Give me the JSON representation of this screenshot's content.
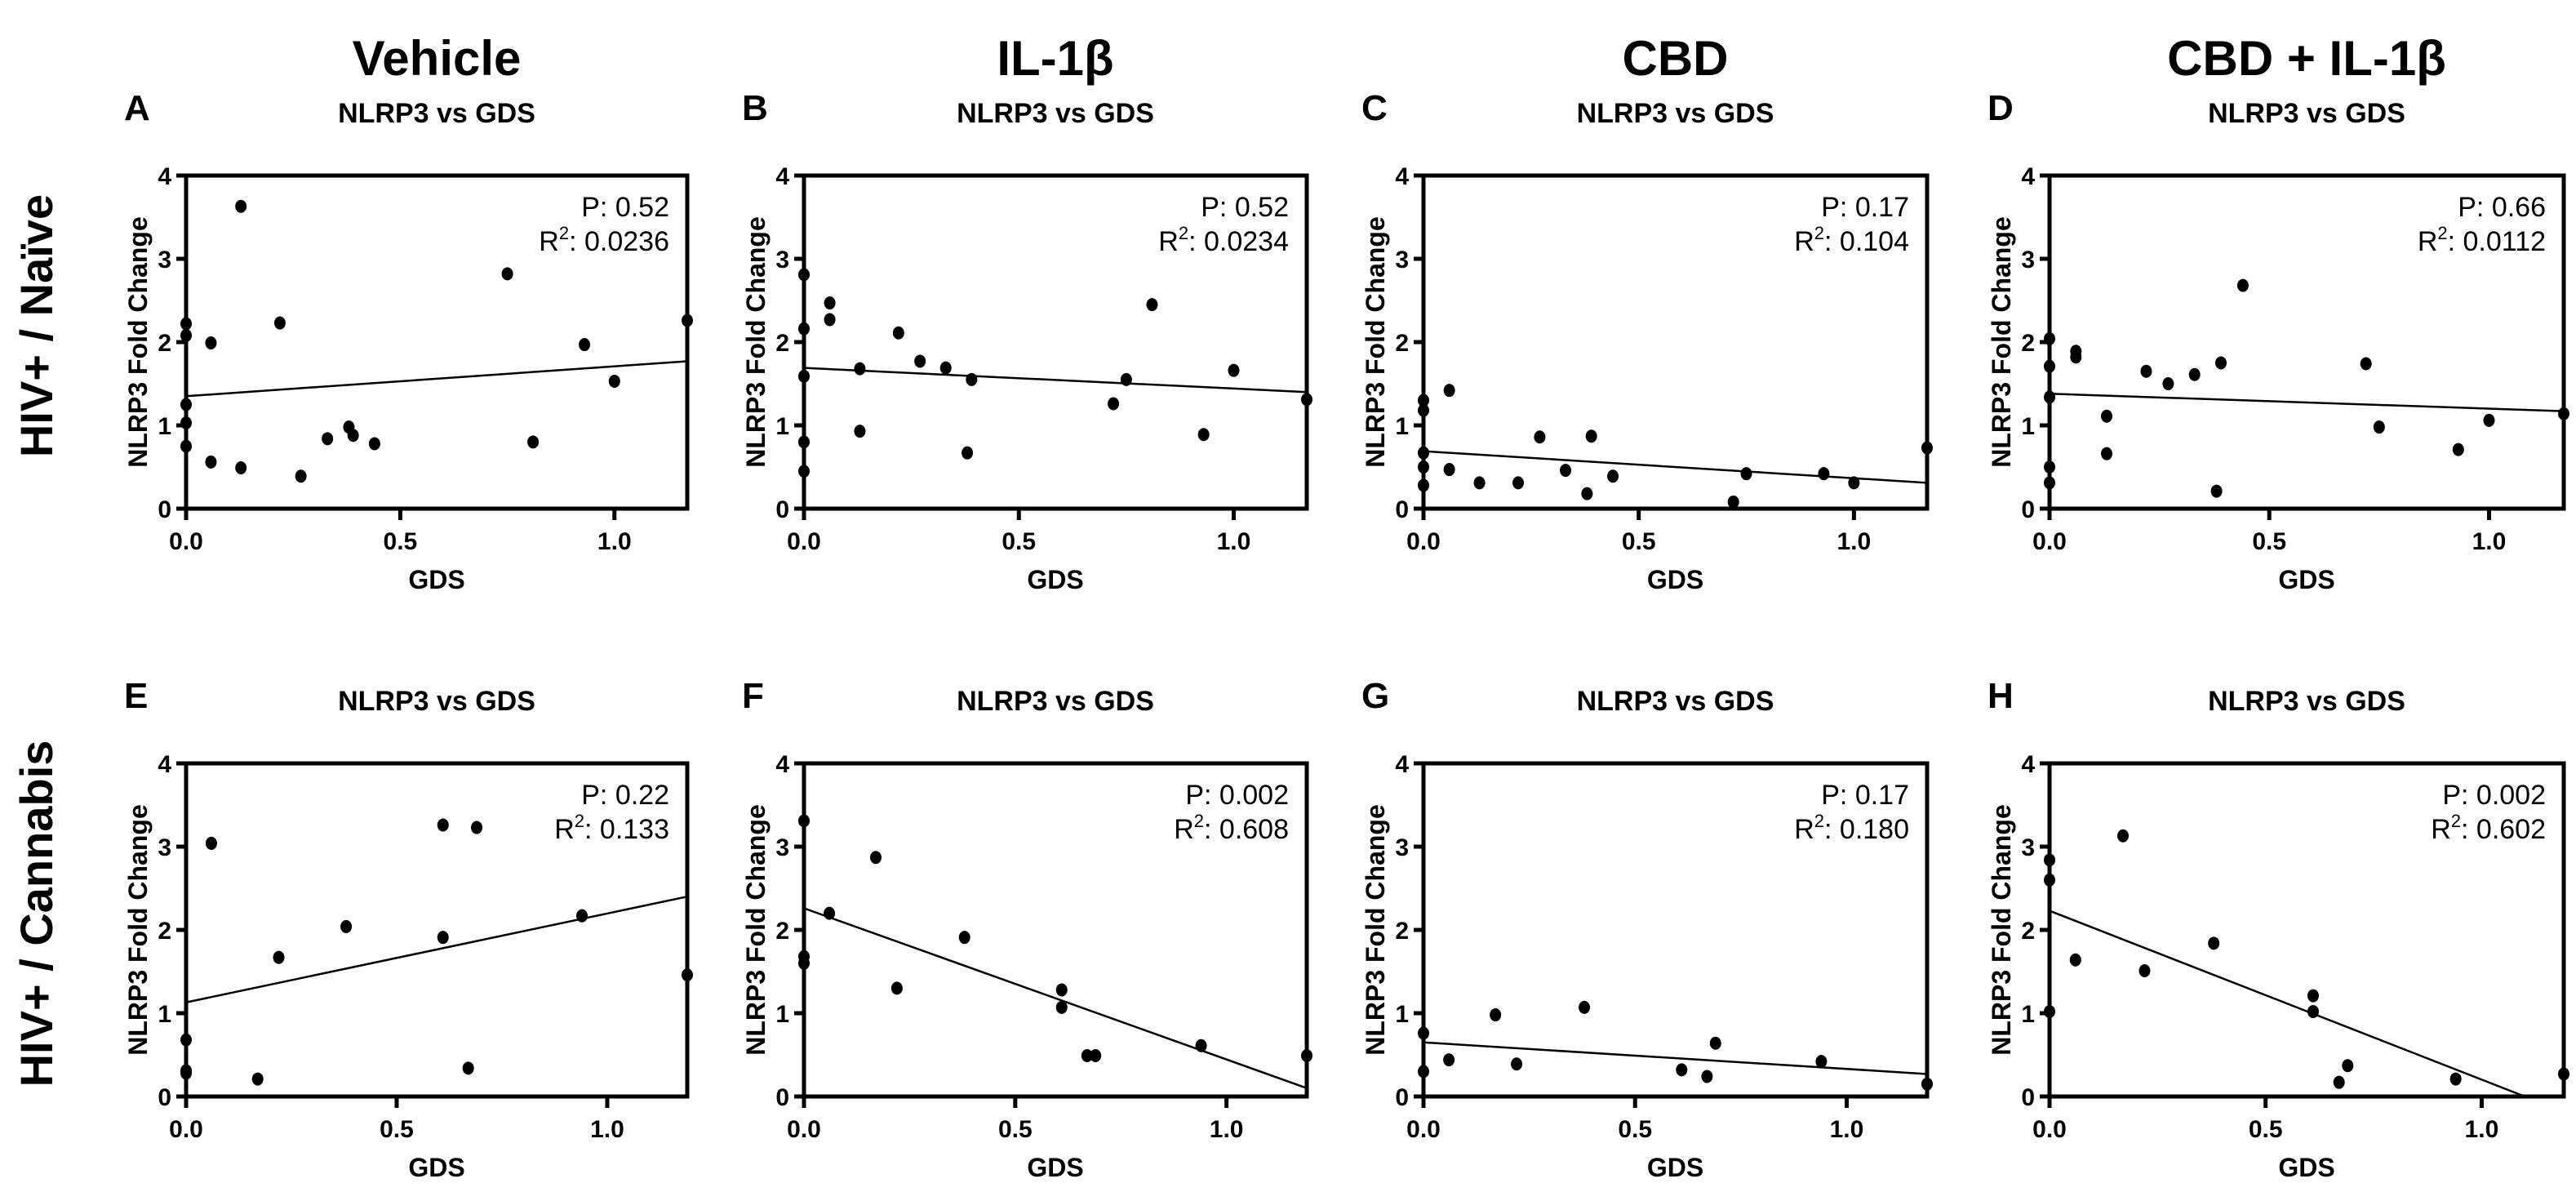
{
  "column_titles": [
    "Vehicle",
    "IL-1β",
    "CBD",
    "CBD + IL-1β"
  ],
  "row_titles": [
    "HIV+ / Naïve",
    "HIV+ / Cannabis"
  ],
  "chart_data": [
    {
      "type": "scatter",
      "letter": "A",
      "title": "NLRP3 vs GDS",
      "xlabel": "GDS",
      "ylabel": "NLRP3 Fold Change",
      "xlim": [
        0,
        1.17
      ],
      "ylim": [
        0,
        4
      ],
      "xticks": [
        "0.0",
        "0.5",
        "1.0"
      ],
      "yticks": [
        "0",
        "1",
        "2",
        "3",
        "4"
      ],
      "p_text": "P: 0.52",
      "r2_label": "R",
      "r2_sup": "2",
      "r2_value": ": 0.0236",
      "x": [
        0.128,
        0.75,
        0,
        0,
        0.058,
        0.219,
        1.17,
        0.93,
        1.0,
        0,
        0,
        0,
        0.058,
        0.128,
        0.268,
        0.33,
        0.38,
        0.39,
        0.44,
        0.81
      ],
      "y": [
        3.63,
        2.82,
        2.22,
        2.08,
        1.99,
        2.23,
        2.26,
        1.97,
        1.53,
        1.25,
        1.03,
        0.75,
        0.56,
        0.49,
        0.39,
        0.84,
        0.98,
        0.88,
        0.78,
        0.8
      ],
      "fit_line": {
        "x": [
          0,
          1.17
        ],
        "y": [
          1.35,
          1.77
        ]
      }
    },
    {
      "type": "scatter",
      "letter": "B",
      "title": "NLRP3 vs GDS",
      "xlabel": "GDS",
      "ylabel": "NLRP3 Fold Change",
      "xlim": [
        0,
        1.17
      ],
      "ylim": [
        0,
        4
      ],
      "xticks": [
        "0.0",
        "0.5",
        "1.0"
      ],
      "yticks": [
        "0",
        "1",
        "2",
        "3",
        "4"
      ],
      "p_text": "P: 0.52",
      "r2_label": "R",
      "r2_sup": "2",
      "r2_value": ": 0.0234",
      "x": [
        0,
        0,
        0,
        0,
        0,
        0.06,
        0.06,
        0.13,
        0.13,
        0.22,
        0.27,
        0.33,
        0.39,
        0.38,
        0.72,
        0.75,
        0.81,
        0.93,
        1.0,
        1.17
      ],
      "y": [
        2.81,
        2.16,
        1.59,
        0.8,
        0.45,
        2.47,
        2.27,
        1.68,
        0.93,
        2.11,
        1.77,
        1.69,
        1.55,
        0.67,
        1.26,
        1.55,
        2.45,
        0.89,
        1.66,
        1.31
      ],
      "fit_line": {
        "x": [
          0,
          1.17
        ],
        "y": [
          1.69,
          1.4
        ]
      }
    },
    {
      "type": "scatter",
      "letter": "C",
      "title": "NLRP3 vs GDS",
      "xlabel": "GDS",
      "ylabel": "NLRP3 Fold Change",
      "xlim": [
        0,
        1.17
      ],
      "ylim": [
        0,
        4
      ],
      "xticks": [
        "0.0",
        "0.5",
        "1.0"
      ],
      "yticks": [
        "0",
        "1",
        "2",
        "3",
        "4"
      ],
      "p_text": "P: 0.17",
      "r2_label": "R",
      "r2_sup": "2",
      "r2_value": ": 0.104",
      "x": [
        0,
        0,
        0,
        0,
        0,
        0.06,
        0.06,
        0.13,
        0.22,
        0.27,
        0.33,
        0.39,
        0.38,
        0.44,
        0.72,
        0.75,
        0.93,
        1.0,
        1.17
      ],
      "y": [
        1.3,
        1.18,
        0.67,
        0.5,
        0.28,
        1.42,
        0.47,
        0.31,
        0.31,
        0.86,
        0.46,
        0.87,
        0.18,
        0.39,
        0.08,
        0.42,
        0.42,
        0.31,
        0.73
      ],
      "fit_line": {
        "x": [
          0,
          1.17
        ],
        "y": [
          0.69,
          0.31
        ]
      }
    },
    {
      "type": "scatter",
      "letter": "D",
      "title": "NLRP3 vs GDS",
      "xlabel": "GDS",
      "ylabel": "NLRP3 Fold Change",
      "xlim": [
        0,
        1.17
      ],
      "ylim": [
        0,
        4
      ],
      "xticks": [
        "0.0",
        "0.5",
        "1.0"
      ],
      "yticks": [
        "0",
        "1",
        "2",
        "3",
        "4"
      ],
      "p_text": "P: 0.66",
      "r2_label": "R",
      "r2_sup": "2",
      "r2_value": ": 0.0112",
      "x": [
        0,
        0,
        0,
        0,
        0,
        0.06,
        0.06,
        0.13,
        0.13,
        0.22,
        0.27,
        0.33,
        0.39,
        0.38,
        0.44,
        0.72,
        0.75,
        0.93,
        1.0,
        1.17
      ],
      "y": [
        2.04,
        1.71,
        1.34,
        0.5,
        0.31,
        1.89,
        1.82,
        1.11,
        0.66,
        1.65,
        1.5,
        1.61,
        1.75,
        0.21,
        2.68,
        1.74,
        0.98,
        0.71,
        1.06,
        1.14
      ],
      "fit_line": {
        "x": [
          0,
          1.17
        ],
        "y": [
          1.38,
          1.17
        ]
      }
    },
    {
      "type": "scatter",
      "letter": "E",
      "title": "NLRP3 vs GDS",
      "xlabel": "GDS",
      "ylabel": "NLRP3 Fold Change",
      "xlim": [
        0,
        1.19
      ],
      "ylim": [
        0,
        4
      ],
      "xticks": [
        "0.0",
        "0.5",
        "1.0"
      ],
      "yticks": [
        "0",
        "1",
        "2",
        "3",
        "4"
      ],
      "p_text": "P: 0.22",
      "r2_label": "R",
      "r2_sup": "2",
      "r2_value": ": 0.133",
      "x": [
        0,
        0,
        0,
        0.06,
        0.17,
        0.22,
        0.38,
        0.61,
        0.61,
        0.69,
        0.67,
        0.94,
        1.19
      ],
      "y": [
        0.68,
        0.31,
        0.28,
        3.04,
        0.21,
        1.67,
        2.04,
        3.26,
        1.91,
        3.23,
        0.34,
        2.17,
        1.46
      ],
      "fit_line": {
        "x": [
          0,
          1.19
        ],
        "y": [
          1.13,
          2.4
        ]
      }
    },
    {
      "type": "scatter",
      "letter": "F",
      "title": "NLRP3 vs GDS",
      "xlabel": "GDS",
      "ylabel": "NLRP3 Fold Change",
      "xlim": [
        0,
        1.19
      ],
      "ylim": [
        0,
        4
      ],
      "xticks": [
        "0.0",
        "0.5",
        "1.0"
      ],
      "yticks": [
        "0",
        "1",
        "2",
        "3",
        "4"
      ],
      "p_text": "P: 0.002",
      "r2_label": "R",
      "r2_sup": "2",
      "r2_value": ": 0.608",
      "x": [
        0,
        0,
        0,
        0.06,
        0.17,
        0.22,
        0.38,
        0.61,
        0.61,
        0.67,
        0.69,
        0.94,
        1.19
      ],
      "y": [
        3.31,
        1.68,
        1.6,
        2.2,
        2.87,
        1.3,
        1.91,
        1.28,
        1.07,
        0.49,
        0.49,
        0.61,
        0.49
      ],
      "fit_line": {
        "x": [
          0,
          1.19
        ],
        "y": [
          2.26,
          0.1
        ]
      }
    },
    {
      "type": "scatter",
      "letter": "G",
      "title": "NLRP3 vs GDS",
      "xlabel": "GDS",
      "ylabel": "NLRP3 Fold Change",
      "xlim": [
        0,
        1.19
      ],
      "ylim": [
        0,
        4
      ],
      "xticks": [
        "0.0",
        "0.5",
        "1.0"
      ],
      "yticks": [
        "0",
        "1",
        "2",
        "3",
        "4"
      ],
      "p_text": "P: 0.17",
      "r2_label": "R",
      "r2_sup": "2",
      "r2_value": ": 0.180",
      "x": [
        0,
        0,
        0.06,
        0.17,
        0.22,
        0.38,
        0.61,
        0.67,
        0.69,
        0.94,
        1.19
      ],
      "y": [
        0.76,
        0.3,
        0.44,
        0.98,
        0.39,
        1.07,
        0.32,
        0.24,
        0.64,
        0.42,
        0.15
      ],
      "fit_line": {
        "x": [
          0,
          1.19
        ],
        "y": [
          0.65,
          0.27
        ]
      }
    },
    {
      "type": "scatter",
      "letter": "H",
      "title": "NLRP3 vs GDS",
      "xlabel": "GDS",
      "ylabel": "NLRP3 Fold Change",
      "xlim": [
        0,
        1.19
      ],
      "ylim": [
        0,
        4
      ],
      "xticks": [
        "0.0",
        "0.5",
        "1.0"
      ],
      "yticks": [
        "0",
        "1",
        "2",
        "3",
        "4"
      ],
      "p_text": "P: 0.002",
      "r2_label": "R",
      "r2_sup": "2",
      "r2_value": ": 0.602",
      "x": [
        0,
        0,
        0,
        0.06,
        0.17,
        0.22,
        0.38,
        0.61,
        0.61,
        0.67,
        0.69,
        0.94,
        1.19
      ],
      "y": [
        2.84,
        2.6,
        1.02,
        1.64,
        3.13,
        1.51,
        1.84,
        1.21,
        1.02,
        0.17,
        0.37,
        0.21,
        0.27
      ],
      "fit_line": {
        "x": [
          0,
          1.1
        ],
        "y": [
          2.23,
          0.0
        ]
      }
    }
  ]
}
